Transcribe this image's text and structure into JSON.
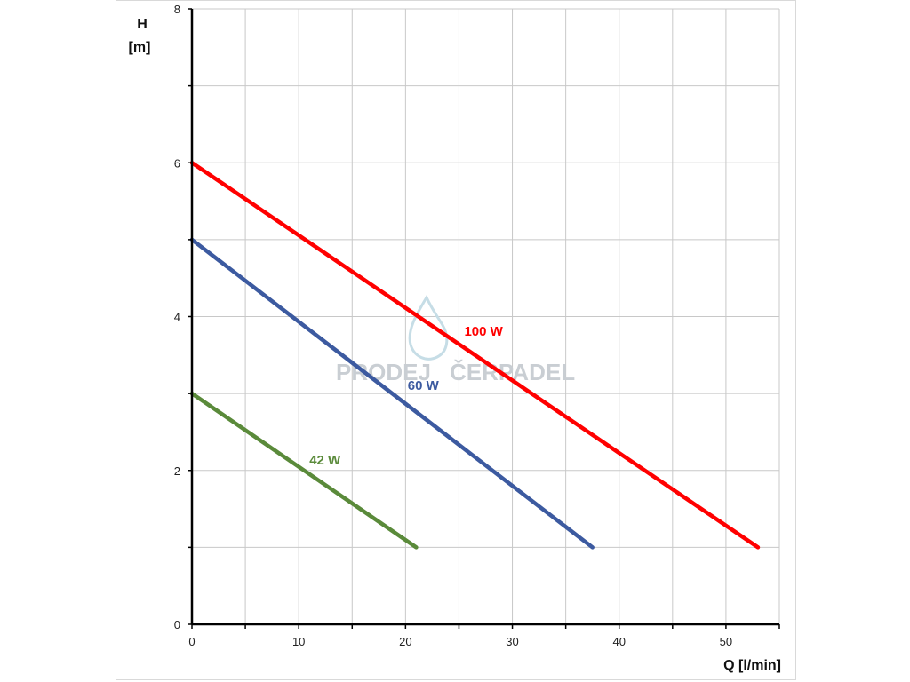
{
  "chart_data": {
    "type": "line",
    "title": "",
    "xlabel": "Q [l/min]",
    "ylabel_line1": "H",
    "ylabel_line2": "[m]",
    "xlim": [
      0,
      55
    ],
    "ylim": [
      0,
      8
    ],
    "x_ticks": [
      0,
      10,
      20,
      30,
      40,
      50
    ],
    "x_minor_step": 5,
    "y_ticks": [
      0,
      2,
      4,
      6,
      8
    ],
    "y_minor_step": 1,
    "grid": true,
    "series": [
      {
        "name": "100 W",
        "color": "#ff0000",
        "x": [
          0,
          53
        ],
        "y": [
          6,
          1
        ]
      },
      {
        "name": "60 W",
        "color": "#3c5aa0",
        "x": [
          0,
          37.5
        ],
        "y": [
          5,
          1
        ]
      },
      {
        "name": "42 W",
        "color": "#5a8a3a",
        "x": [
          0,
          21
        ],
        "y": [
          3,
          1
        ]
      }
    ],
    "label_positions_data": [
      {
        "x": 25.5,
        "y": 3.75
      },
      {
        "x": 20.2,
        "y": 3.05
      },
      {
        "x": 11.0,
        "y": 2.08
      }
    ]
  },
  "watermark": {
    "text_left": "PRODEJ",
    "text_right": "ČERPADEL"
  }
}
